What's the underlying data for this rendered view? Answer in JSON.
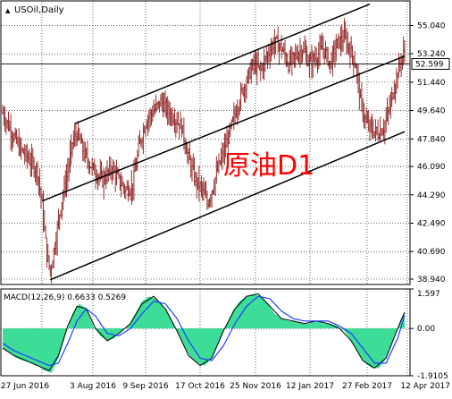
{
  "chart_data": {
    "type": "ohlc",
    "title": "USOil,Daily",
    "annotation": "原油D1",
    "grid": true,
    "price_axis": {
      "ticks": [
        "55.040",
        "53.240",
        "51.440",
        "49.640",
        "47.840",
        "46.090",
        "44.290",
        "42.490",
        "40.690",
        "38.940"
      ],
      "ylim": [
        38.6,
        56.6
      ],
      "current": "52.599"
    },
    "x_ticks": [
      "27 Jun 2016",
      "3 Aug 2016",
      "9 Sep 2016",
      "17 Oct 2016",
      "25 Nov 2016",
      "12 Jan 2017",
      "27 Feb 2017",
      "12 Apr 2017"
    ],
    "path_points": [
      [
        0,
        49.5
      ],
      [
        8,
        48.2
      ],
      [
        14,
        47.3
      ],
      [
        22,
        46.6
      ],
      [
        30,
        45.8
      ],
      [
        34,
        43.6
      ],
      [
        38,
        40.5
      ],
      [
        41,
        39.4
      ],
      [
        45,
        41.2
      ],
      [
        50,
        43.6
      ],
      [
        56,
        45.8
      ],
      [
        60,
        47.6
      ],
      [
        64,
        48.2
      ],
      [
        70,
        46.9
      ],
      [
        78,
        45.9
      ],
      [
        86,
        45.2
      ],
      [
        94,
        46.0
      ],
      [
        100,
        45.2
      ],
      [
        106,
        44.6
      ],
      [
        112,
        44.9
      ],
      [
        118,
        47.6
      ],
      [
        124,
        49.1
      ],
      [
        130,
        49.6
      ],
      [
        136,
        50.2
      ],
      [
        142,
        49.6
      ],
      [
        148,
        49.2
      ],
      [
        154,
        48.6
      ],
      [
        160,
        46.6
      ],
      [
        166,
        45.2
      ],
      [
        172,
        44.6
      ],
      [
        176,
        43.7
      ],
      [
        180,
        44.6
      ],
      [
        186,
        46.1
      ],
      [
        192,
        47.4
      ],
      [
        198,
        48.9
      ],
      [
        204,
        50.4
      ],
      [
        210,
        51.6
      ],
      [
        216,
        52.6
      ],
      [
        222,
        52.2
      ],
      [
        228,
        53.2
      ],
      [
        234,
        54.0
      ],
      [
        240,
        53.6
      ],
      [
        246,
        52.6
      ],
      [
        252,
        53.1
      ],
      [
        258,
        53.6
      ],
      [
        264,
        52.6
      ],
      [
        270,
        53.1
      ],
      [
        276,
        53.6
      ],
      [
        282,
        52.6
      ],
      [
        288,
        53.9
      ],
      [
        294,
        54.3
      ],
      [
        300,
        53.3
      ],
      [
        304,
        52.5
      ],
      [
        308,
        50.2
      ],
      [
        313,
        48.8
      ],
      [
        318,
        48.4
      ],
      [
        323,
        48.2
      ],
      [
        328,
        48.6
      ],
      [
        333,
        49.8
      ],
      [
        338,
        51.5
      ],
      [
        343,
        52.9
      ],
      [
        346,
        53.4
      ]
    ],
    "trend_lines": [
      {
        "x1": 34,
        "y1": 43.9,
        "x2": 346,
        "y2": 53.1
      },
      {
        "x1": 62,
        "y1": 48.8,
        "x2": 316,
        "y2": 56.4
      },
      {
        "x1": 41,
        "y1": 38.9,
        "x2": 346,
        "y2": 48.3
      }
    ],
    "macd": {
      "label": "MACD(12,26,9) 0.6633 0.5269",
      "ticks": [
        "1.597",
        "0.00",
        "-1.9105"
      ],
      "ylim": [
        -1.9105,
        1.597
      ],
      "histogram": [
        [
          0,
          -0.8
        ],
        [
          6,
          -1.0
        ],
        [
          12,
          -1.2
        ],
        [
          18,
          -1.3
        ],
        [
          24,
          -1.4
        ],
        [
          30,
          -1.5
        ],
        [
          36,
          -1.7
        ],
        [
          42,
          -1.8
        ],
        [
          48,
          -1.2
        ],
        [
          54,
          -0.3
        ],
        [
          60,
          0.6
        ],
        [
          66,
          1.0
        ],
        [
          72,
          0.8
        ],
        [
          78,
          0.1
        ],
        [
          84,
          -0.3
        ],
        [
          90,
          -0.5
        ],
        [
          96,
          -0.4
        ],
        [
          102,
          -0.1
        ],
        [
          108,
          0.1
        ],
        [
          114,
          0.6
        ],
        [
          120,
          1.1
        ],
        [
          126,
          1.3
        ],
        [
          132,
          1.2
        ],
        [
          138,
          0.9
        ],
        [
          144,
          0.5
        ],
        [
          150,
          -0.1
        ],
        [
          156,
          -0.7
        ],
        [
          162,
          -1.2
        ],
        [
          168,
          -1.4
        ],
        [
          174,
          -1.5
        ],
        [
          180,
          -1.2
        ],
        [
          186,
          -0.6
        ],
        [
          192,
          0.1
        ],
        [
          198,
          0.7
        ],
        [
          204,
          1.1
        ],
        [
          210,
          1.3
        ],
        [
          216,
          1.4
        ],
        [
          222,
          1.3
        ],
        [
          228,
          1.0
        ],
        [
          234,
          0.6
        ],
        [
          240,
          0.4
        ],
        [
          246,
          0.3
        ],
        [
          252,
          0.3
        ],
        [
          258,
          0.2
        ],
        [
          264,
          0.2
        ],
        [
          270,
          0.3
        ],
        [
          276,
          0.2
        ],
        [
          282,
          0.2
        ],
        [
          288,
          0.1
        ],
        [
          294,
          -0.1
        ],
        [
          300,
          -0.5
        ],
        [
          306,
          -1.0
        ],
        [
          312,
          -1.4
        ],
        [
          318,
          -1.6
        ],
        [
          324,
          -1.6
        ],
        [
          330,
          -1.2
        ],
        [
          336,
          -0.5
        ],
        [
          342,
          0.3
        ],
        [
          346,
          0.7
        ]
      ],
      "macd_line": [
        [
          0,
          -0.8
        ],
        [
          10,
          -1.1
        ],
        [
          20,
          -1.3
        ],
        [
          30,
          -1.5
        ],
        [
          40,
          -1.7
        ],
        [
          48,
          -1.1
        ],
        [
          56,
          0.1
        ],
        [
          64,
          0.9
        ],
        [
          72,
          0.8
        ],
        [
          80,
          0.0
        ],
        [
          90,
          -0.5
        ],
        [
          100,
          -0.2
        ],
        [
          110,
          0.2
        ],
        [
          120,
          1.0
        ],
        [
          130,
          1.3
        ],
        [
          140,
          0.8
        ],
        [
          150,
          -0.1
        ],
        [
          160,
          -1.1
        ],
        [
          170,
          -1.5
        ],
        [
          180,
          -1.2
        ],
        [
          190,
          -0.1
        ],
        [
          200,
          0.8
        ],
        [
          210,
          1.3
        ],
        [
          220,
          1.4
        ],
        [
          230,
          0.9
        ],
        [
          240,
          0.4
        ],
        [
          250,
          0.3
        ],
        [
          260,
          0.2
        ],
        [
          270,
          0.3
        ],
        [
          280,
          0.2
        ],
        [
          290,
          0.0
        ],
        [
          300,
          -0.5
        ],
        [
          310,
          -1.3
        ],
        [
          320,
          -1.6
        ],
        [
          330,
          -1.2
        ],
        [
          340,
          0.0
        ],
        [
          346,
          0.66
        ]
      ],
      "signal_line": [
        [
          0,
          -0.6
        ],
        [
          10,
          -0.9
        ],
        [
          20,
          -1.1
        ],
        [
          30,
          -1.3
        ],
        [
          40,
          -1.5
        ],
        [
          48,
          -1.4
        ],
        [
          56,
          -0.6
        ],
        [
          64,
          0.3
        ],
        [
          72,
          0.8
        ],
        [
          80,
          0.5
        ],
        [
          90,
          -0.2
        ],
        [
          100,
          -0.3
        ],
        [
          110,
          0.0
        ],
        [
          120,
          0.6
        ],
        [
          130,
          1.1
        ],
        [
          140,
          1.0
        ],
        [
          150,
          0.4
        ],
        [
          160,
          -0.5
        ],
        [
          170,
          -1.2
        ],
        [
          180,
          -1.3
        ],
        [
          190,
          -0.7
        ],
        [
          200,
          0.2
        ],
        [
          210,
          0.9
        ],
        [
          220,
          1.3
        ],
        [
          230,
          1.2
        ],
        [
          240,
          0.7
        ],
        [
          250,
          0.4
        ],
        [
          260,
          0.3
        ],
        [
          270,
          0.3
        ],
        [
          280,
          0.3
        ],
        [
          290,
          0.1
        ],
        [
          300,
          -0.2
        ],
        [
          310,
          -0.8
        ],
        [
          320,
          -1.4
        ],
        [
          330,
          -1.4
        ],
        [
          340,
          -0.4
        ],
        [
          346,
          0.53
        ]
      ]
    },
    "colors": {
      "background": "#ffffff",
      "frame": "#000000",
      "grid": "#000000",
      "price_line": "#000000",
      "candle": "#8b1a1a",
      "trend": "#000000",
      "annotation": "#ff0000",
      "histogram": "#3ddc97",
      "macd_line": "#000000",
      "signal_line": "#1f3fff"
    }
  }
}
